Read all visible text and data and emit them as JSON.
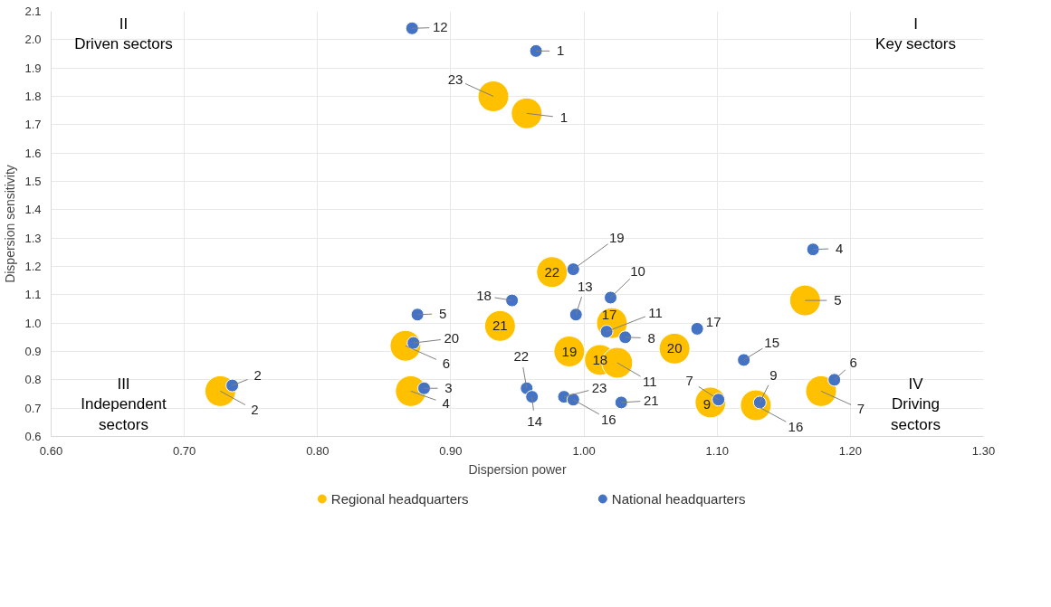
{
  "chart_data": {
    "type": "scatter",
    "xlabel": "Dispersion power",
    "ylabel": "Dispersion sensitivity",
    "xlim": [
      0.6,
      1.3
    ],
    "ylim": [
      0.6,
      2.1
    ],
    "xticks": [
      {
        "value": 0.6,
        "label": "0.60"
      },
      {
        "value": 0.7,
        "label": "0.70"
      },
      {
        "value": 0.8,
        "label": "0.80"
      },
      {
        "value": 0.9,
        "label": "0.90"
      },
      {
        "value": 1.0,
        "label": "1.00"
      },
      {
        "value": 1.1,
        "label": "1.10"
      },
      {
        "value": 1.2,
        "label": "1.20"
      },
      {
        "value": 1.3,
        "label": "1.30"
      }
    ],
    "yticks": [
      {
        "value": 0.6,
        "label": "0.6"
      },
      {
        "value": 0.7,
        "label": "0.7"
      },
      {
        "value": 0.8,
        "label": "0.8"
      },
      {
        "value": 0.9,
        "label": "0.9"
      },
      {
        "value": 1.0,
        "label": "1.0"
      },
      {
        "value": 1.1,
        "label": "1.1"
      },
      {
        "value": 1.2,
        "label": "1.2"
      },
      {
        "value": 1.3,
        "label": "1.3"
      },
      {
        "value": 1.4,
        "label": "1.4"
      },
      {
        "value": 1.5,
        "label": "1.5"
      },
      {
        "value": 1.6,
        "label": "1.6"
      },
      {
        "value": 1.7,
        "label": "1.7"
      },
      {
        "value": 1.8,
        "label": "1.8"
      },
      {
        "value": 1.9,
        "label": "1.9"
      },
      {
        "value": 2.0,
        "label": "2.0"
      },
      {
        "value": 2.1,
        "label": "2.1"
      }
    ],
    "grid": true,
    "legend": "bottom",
    "marker": "circle",
    "annotations": [
      "II\nDriven sectors",
      "I\nKey sectors",
      "III\nIndependent\nsectors",
      "IV\nDriving\nsectors",
      {
        "text": "23",
        "x": 0.932,
        "y": 1.8
      },
      {
        "text": "1",
        "x": 0.957,
        "y": 1.74
      },
      {
        "text": "22",
        "x": 0.976,
        "y": 1.18
      },
      {
        "text": "5",
        "x": 1.166,
        "y": 1.08
      },
      {
        "text": "21",
        "x": 0.937,
        "y": 0.99
      },
      {
        "text": "17",
        "x": 1.021,
        "y": 1.0
      },
      {
        "text": "19",
        "x": 0.989,
        "y": 0.9
      },
      {
        "text": "20",
        "x": 1.068,
        "y": 0.91
      },
      {
        "text": "6",
        "x": 0.866,
        "y": 0.92
      },
      {
        "text": "18",
        "x": 1.012,
        "y": 0.87
      },
      {
        "text": "11",
        "x": 1.025,
        "y": 0.86
      },
      {
        "text": "2",
        "x": 0.727,
        "y": 0.76
      },
      {
        "text": "4",
        "x": 0.87,
        "y": 0.76
      },
      {
        "text": "7",
        "x": 1.178,
        "y": 0.76
      },
      {
        "text": "9",
        "x": 1.095,
        "y": 0.72
      },
      {
        "text": "16",
        "x": 1.129,
        "y": 0.71
      },
      {
        "text": "12",
        "x": 0.871,
        "y": 2.04
      },
      {
        "text": "1",
        "x": 0.964,
        "y": 1.96
      },
      {
        "text": "19",
        "x": 0.992,
        "y": 1.19
      },
      {
        "text": "4",
        "x": 1.172,
        "y": 1.26
      },
      {
        "text": "10",
        "x": 1.02,
        "y": 1.09
      },
      {
        "text": "18",
        "x": 0.946,
        "y": 1.08
      },
      {
        "text": "13",
        "x": 0.994,
        "y": 1.03
      },
      {
        "text": "5",
        "x": 0.875,
        "y": 1.03
      },
      {
        "text": "17",
        "x": 1.085,
        "y": 0.98
      },
      {
        "text": "11",
        "x": 1.017,
        "y": 0.97
      },
      {
        "text": "8",
        "x": 1.031,
        "y": 0.95
      },
      {
        "text": "20",
        "x": 0.872,
        "y": 0.93
      },
      {
        "text": "15",
        "x": 1.12,
        "y": 0.87
      },
      {
        "text": "6",
        "x": 1.188,
        "y": 0.8
      },
      {
        "text": "2",
        "x": 0.736,
        "y": 0.78
      },
      {
        "text": "3",
        "x": 0.88,
        "y": 0.77
      },
      {
        "text": "22",
        "x": 0.957,
        "y": 0.77
      },
      {
        "text": "14",
        "x": 0.961,
        "y": 0.74
      },
      {
        "text": "23",
        "x": 0.985,
        "y": 0.74
      },
      {
        "text": "16",
        "x": 0.992,
        "y": 0.73
      },
      {
        "text": "21",
        "x": 1.028,
        "y": 0.72
      },
      {
        "text": "7",
        "x": 1.101,
        "y": 0.73
      },
      {
        "text": "9",
        "x": 1.132,
        "y": 0.72
      }
    ],
    "series": [
      {
        "name": "Regional headquarters",
        "color": "#ffc000",
        "x": [
          0.932,
          0.957,
          0.976,
          1.166,
          0.937,
          1.021,
          0.989,
          1.068,
          0.866,
          1.012,
          1.025,
          0.727,
          0.87,
          1.178,
          1.095,
          1.129
        ],
        "values": [
          1.8,
          1.74,
          1.18,
          1.08,
          0.99,
          1.0,
          0.9,
          0.91,
          0.92,
          0.87,
          0.86,
          0.76,
          0.76,
          0.76,
          0.72,
          0.71
        ]
      },
      {
        "name": "National headquarters",
        "color": "#4472c4",
        "x": [
          0.871,
          0.964,
          0.992,
          1.172,
          1.02,
          0.946,
          0.994,
          0.875,
          1.085,
          1.017,
          1.031,
          0.872,
          1.12,
          1.188,
          0.736,
          0.88,
          0.957,
          0.961,
          0.985,
          0.992,
          1.028,
          1.101,
          1.132
        ],
        "values": [
          2.04,
          1.96,
          1.19,
          1.26,
          1.09,
          1.08,
          1.03,
          1.03,
          0.98,
          0.97,
          0.95,
          0.93,
          0.87,
          0.8,
          0.78,
          0.77,
          0.77,
          0.74,
          0.74,
          0.73,
          0.72,
          0.73,
          0.72
        ]
      }
    ]
  }
}
